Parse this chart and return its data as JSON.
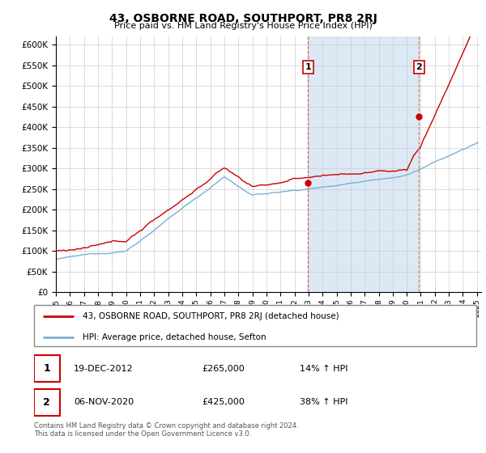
{
  "title": "43, OSBORNE ROAD, SOUTHPORT, PR8 2RJ",
  "subtitle": "Price paid vs. HM Land Registry's House Price Index (HPI)",
  "footer": "Contains HM Land Registry data © Crown copyright and database right 2024.\nThis data is licensed under the Open Government Licence v3.0.",
  "legend_line1": "43, OSBORNE ROAD, SOUTHPORT, PR8 2RJ (detached house)",
  "legend_line2": "HPI: Average price, detached house, Sefton",
  "transaction1_date": "19-DEC-2012",
  "transaction1_price": "£265,000",
  "transaction1_hpi": "14% ↑ HPI",
  "transaction2_date": "06-NOV-2020",
  "transaction2_price": "£425,000",
  "transaction2_hpi": "38% ↑ HPI",
  "hpi_color": "#7bafd4",
  "price_color": "#cc0000",
  "vline_color": "#dd6666",
  "fill_color": "#dce9f5",
  "background_color": "#ffffff",
  "grid_color": "#cccccc",
  "ylim": [
    0,
    620000
  ],
  "yticks": [
    0,
    50000,
    100000,
    150000,
    200000,
    250000,
    300000,
    350000,
    400000,
    450000,
    500000,
    550000,
    600000
  ],
  "t1_year": 2012.958,
  "t1_price": 265000,
  "t2_year": 2020.875,
  "t2_price": 425000
}
